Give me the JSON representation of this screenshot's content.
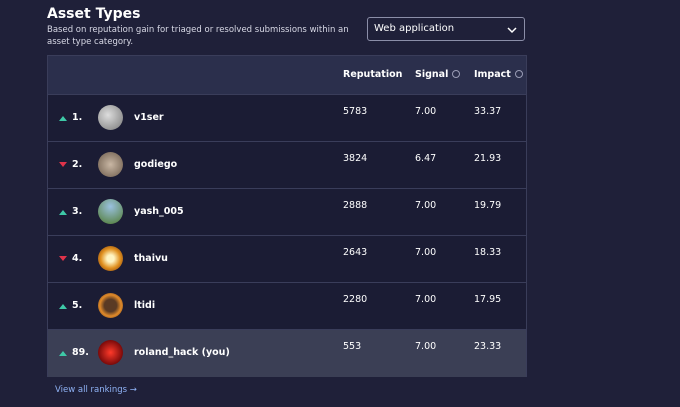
{
  "header": {
    "title": "Asset Types",
    "subtitle": "Based on reputation gain for triaged or resolved submissions within an asset type category."
  },
  "dropdown": {
    "selected": "Web application"
  },
  "table": {
    "columns": [
      "Reputation",
      "Signal",
      "Impact"
    ],
    "rows": [
      {
        "trend": "up",
        "rank": "1.",
        "name": "v1ser",
        "cells": [
          "5783",
          "7.00",
          "33.37"
        ]
      },
      {
        "trend": "down",
        "rank": "2.",
        "name": "godiego",
        "cells": [
          "3824",
          "6.47",
          "21.93"
        ]
      },
      {
        "trend": "up",
        "rank": "3.",
        "name": "yash_005",
        "cells": [
          "2888",
          "7.00",
          "19.79"
        ]
      },
      {
        "trend": "down",
        "rank": "4.",
        "name": "thaivu",
        "cells": [
          "2643",
          "7.00",
          "18.33"
        ]
      },
      {
        "trend": "up",
        "rank": "5.",
        "name": "ltidi",
        "cells": [
          "2280",
          "7.00",
          "17.95"
        ]
      },
      {
        "trend": "up",
        "rank": "89.",
        "name": "roland_hack (you)",
        "cells": [
          "553",
          "7.00",
          "23.33"
        ],
        "highlighted": true
      }
    ]
  },
  "footer": {
    "link": "View all rankings →"
  }
}
